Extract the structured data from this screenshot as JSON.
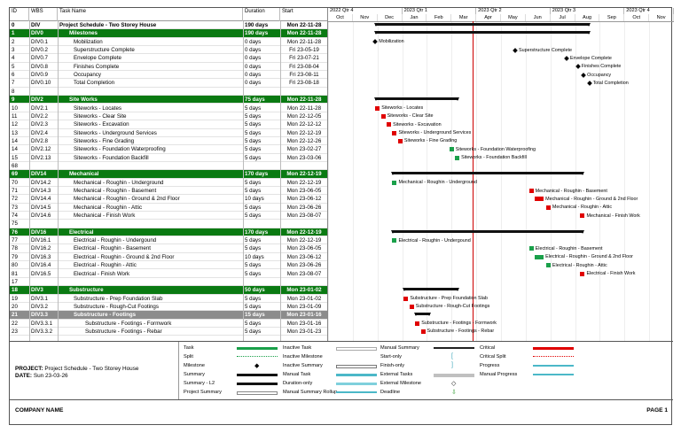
{
  "columns": {
    "id": "ID",
    "wbs": "WBS",
    "name": "Task Name",
    "duration": "Duration",
    "start": "Start"
  },
  "quarters": [
    "2022 Qtr 4",
    "2023 Qtr 1",
    "2023 Qtr 2",
    "2023 Qtr 3",
    "2023 Qtr 4"
  ],
  "months": [
    "Oct",
    "Nov",
    "Dec",
    "Jan",
    "Feb",
    "Mar",
    "Apr",
    "May",
    "Jun",
    "Jul",
    "Aug",
    "Sep",
    "Oct",
    "Nov"
  ],
  "rows": [
    {
      "id": "0",
      "wbs": "DIV",
      "name": "Project Schedule - Two Storey House",
      "duration": "190 days",
      "start": "Mon 22-11-28",
      "style": "div0",
      "indent": 0
    },
    {
      "id": "1",
      "wbs": "DIV0",
      "name": "Milestones",
      "duration": "190 days",
      "start": "Mon 22-11-28",
      "style": "div-green",
      "indent": 1
    },
    {
      "id": "2",
      "wbs": "DIV0.1",
      "name": "Mobilization",
      "duration": "0 days",
      "start": "Mon 22-11-28",
      "style": "",
      "indent": 2
    },
    {
      "id": "3",
      "wbs": "DIV0.2",
      "name": "Superstructure Complete",
      "duration": "0 days",
      "start": "Fri 23-05-19",
      "style": "",
      "indent": 2
    },
    {
      "id": "4",
      "wbs": "DIV0.7",
      "name": "Envelope Complete",
      "duration": "0 days",
      "start": "Fri 23-07-21",
      "style": "",
      "indent": 2
    },
    {
      "id": "5",
      "wbs": "DIV0.8",
      "name": "Finishes Complete",
      "duration": "0 days",
      "start": "Fri 23-08-04",
      "style": "",
      "indent": 2
    },
    {
      "id": "6",
      "wbs": "DIV0.9",
      "name": "Occupancy",
      "duration": "0 days",
      "start": "Fri 23-08-11",
      "style": "",
      "indent": 2
    },
    {
      "id": "7",
      "wbs": "DIV0.10",
      "name": "Total Completion",
      "duration": "0 days",
      "start": "Fri 23-08-18",
      "style": "",
      "indent": 2
    },
    {
      "id": "8",
      "wbs": "",
      "name": "",
      "duration": "",
      "start": "",
      "style": "",
      "indent": 0
    },
    {
      "id": "9",
      "wbs": "DIV2",
      "name": "Site Works",
      "duration": "75 days",
      "start": "Mon 22-11-28",
      "style": "div-green",
      "indent": 1
    },
    {
      "id": "10",
      "wbs": "DIV2.1",
      "name": "Siteworks - Locates",
      "duration": "5 days",
      "start": "Mon 22-11-28",
      "style": "",
      "indent": 2
    },
    {
      "id": "11",
      "wbs": "DIV2.2",
      "name": "Siteworks - Clear Site",
      "duration": "5 days",
      "start": "Mon 22-12-05",
      "style": "",
      "indent": 2
    },
    {
      "id": "12",
      "wbs": "DIV2.3",
      "name": "Siteworks - Excavation",
      "duration": "5 days",
      "start": "Mon 22-12-12",
      "style": "",
      "indent": 2
    },
    {
      "id": "13",
      "wbs": "DIV2.4",
      "name": "Siteworks - Underground Services",
      "duration": "5 days",
      "start": "Mon 22-12-19",
      "style": "",
      "indent": 2
    },
    {
      "id": "14",
      "wbs": "DIV2.8",
      "name": "Siteworks - Fine Grading",
      "duration": "5 days",
      "start": "Mon 22-12-26",
      "style": "",
      "indent": 2
    },
    {
      "id": "14b",
      "wbs": "DIV2.12",
      "name": "Siteworks - Foundation Waterproofing",
      "duration": "5 days",
      "start": "Mon 23-02-27",
      "style": "",
      "indent": 2,
      "id_label": "14"
    },
    {
      "id": "15",
      "wbs": "DIV2.13",
      "name": "Siteworks - Foundation Backfill",
      "duration": "5 days",
      "start": "Mon 23-03-06",
      "style": "",
      "indent": 2
    },
    {
      "id": "68",
      "wbs": "",
      "name": "",
      "duration": "",
      "start": "",
      "style": "",
      "indent": 0
    },
    {
      "id": "69",
      "wbs": "DIV14",
      "name": "Mechanical",
      "duration": "170 days",
      "start": "Mon 22-12-19",
      "style": "div-green",
      "indent": 1
    },
    {
      "id": "70",
      "wbs": "DIV14.2",
      "name": "Mechanical - Roughin - Underground",
      "duration": "5 days",
      "start": "Mon 22-12-19",
      "style": "",
      "indent": 2
    },
    {
      "id": "71",
      "wbs": "DIV14.3",
      "name": "Mechanical - Roughin - Basement",
      "duration": "5 days",
      "start": "Mon 23-06-05",
      "style": "",
      "indent": 2
    },
    {
      "id": "72",
      "wbs": "DIV14.4",
      "name": "Mechanical - Roughin - Ground & 2nd Floor",
      "duration": "10 days",
      "start": "Mon 23-06-12",
      "style": "",
      "indent": 2
    },
    {
      "id": "73",
      "wbs": "DIV14.5",
      "name": "Mechanical - Roughin - Attic",
      "duration": "5 days",
      "start": "Mon 23-06-26",
      "style": "",
      "indent": 2
    },
    {
      "id": "74",
      "wbs": "DIV14.6",
      "name": "Mechanical - Finish Work",
      "duration": "5 days",
      "start": "Mon 23-08-07",
      "style": "",
      "indent": 2
    },
    {
      "id": "75",
      "wbs": "",
      "name": "",
      "duration": "",
      "start": "",
      "style": "",
      "indent": 0
    },
    {
      "id": "76",
      "wbs": "DIV16",
      "name": "Electrical",
      "duration": "170 days",
      "start": "Mon 22-12-19",
      "style": "div-green",
      "indent": 1
    },
    {
      "id": "77",
      "wbs": "DIV16.1",
      "name": "Electrical - Roughin - Undergound",
      "duration": "5 days",
      "start": "Mon 22-12-19",
      "style": "",
      "indent": 2
    },
    {
      "id": "78",
      "wbs": "DIV16.2",
      "name": "Electrical - Roughin - Basement",
      "duration": "5 days",
      "start": "Mon 23-06-05",
      "style": "",
      "indent": 2
    },
    {
      "id": "79",
      "wbs": "DIV16.3",
      "name": "Electrical - Roughin - Ground & 2nd Floor",
      "duration": "10 days",
      "start": "Mon 23-06-12",
      "style": "",
      "indent": 2
    },
    {
      "id": "80",
      "wbs": "DIV16.4",
      "name": "Electrical - Roughin - Attic",
      "duration": "5 days",
      "start": "Mon 23-06-26",
      "style": "",
      "indent": 2
    },
    {
      "id": "81",
      "wbs": "DIV16.5",
      "name": "Electrical - Finish Work",
      "duration": "5 days",
      "start": "Mon 23-08-07",
      "style": "",
      "indent": 2
    },
    {
      "id": "17",
      "wbs": "",
      "name": "",
      "duration": "",
      "start": "",
      "style": "",
      "indent": 0
    },
    {
      "id": "18",
      "wbs": "DIV3",
      "name": "Substructure",
      "duration": "50 days",
      "start": "Mon 23-01-02",
      "style": "div-green",
      "indent": 1
    },
    {
      "id": "19",
      "wbs": "DIV3.1",
      "name": "Substructure - Prep Foundation Slab",
      "duration": "5 days",
      "start": "Mon 23-01-02",
      "style": "",
      "indent": 2
    },
    {
      "id": "20",
      "wbs": "DIV3.2",
      "name": "Substructure - Rough-Cut Footings",
      "duration": "5 days",
      "start": "Mon 23-01-09",
      "style": "",
      "indent": 2
    },
    {
      "id": "21",
      "wbs": "DIV3.3",
      "name": "Substructure - Footings",
      "duration": "15 days",
      "start": "Mon 23-01-16",
      "style": "div-gray",
      "indent": 2
    },
    {
      "id": "22",
      "wbs": "DIV3.3.1",
      "name": "Substructure - Footings - Formwork",
      "duration": "5 days",
      "start": "Mon 23-01-16",
      "style": "",
      "indent": 3
    },
    {
      "id": "23",
      "wbs": "DIV3.3.2",
      "name": "Substructure - Footings - Rebar",
      "duration": "5 days",
      "start": "Mon 23-01-23",
      "style": "",
      "indent": 3
    }
  ],
  "gantt": {
    "timeline_start": "2022-10-01",
    "deadline": "2023-03-28",
    "items": [
      {
        "row": 0,
        "kind": "summary",
        "start": "2022-11-28",
        "end": "2023-08-18"
      },
      {
        "row": 1,
        "kind": "summary",
        "start": "2022-11-28",
        "end": "2023-08-18"
      },
      {
        "row": 2,
        "kind": "milestone",
        "start": "2022-11-28",
        "label": "Mobilization"
      },
      {
        "row": 3,
        "kind": "milestone",
        "start": "2023-05-19",
        "label": "Superstructure Complete"
      },
      {
        "row": 4,
        "kind": "milestone",
        "start": "2023-07-21",
        "label": "Envelope Complete"
      },
      {
        "row": 5,
        "kind": "milestone",
        "start": "2023-08-04",
        "label": "Finishes Complete"
      },
      {
        "row": 6,
        "kind": "milestone",
        "start": "2023-08-11",
        "label": "Occupancy"
      },
      {
        "row": 7,
        "kind": "milestone",
        "start": "2023-08-18",
        "label": "Total Completion"
      },
      {
        "row": 9,
        "kind": "summary",
        "start": "2022-11-28",
        "end": "2023-03-10"
      },
      {
        "row": 10,
        "kind": "task",
        "color": "red",
        "start": "2022-11-28",
        "label": "Siteworks - Locates"
      },
      {
        "row": 11,
        "kind": "task",
        "color": "red",
        "start": "2022-12-05",
        "label": "Siteworks - Clear Site"
      },
      {
        "row": 12,
        "kind": "task",
        "color": "red",
        "start": "2022-12-12",
        "label": "Siteworks - Excavation"
      },
      {
        "row": 13,
        "kind": "task",
        "color": "red",
        "start": "2022-12-19",
        "label": "Siteworks - Underground Services"
      },
      {
        "row": 14,
        "kind": "task",
        "color": "red",
        "start": "2022-12-26",
        "label": "Siteworks - Fine Grading"
      },
      {
        "row": 15,
        "kind": "task",
        "color": "green",
        "start": "2023-02-27",
        "label": "Siteworks - Foundation Waterproofing"
      },
      {
        "row": 16,
        "kind": "task",
        "color": "green",
        "start": "2023-03-06",
        "label": "Siteworks - Foundation Backfill"
      },
      {
        "row": 18,
        "kind": "summary",
        "start": "2022-12-19",
        "end": "2023-08-11"
      },
      {
        "row": 19,
        "kind": "task",
        "color": "green",
        "start": "2022-12-19",
        "label": "Mechanical - Roughin - Underground"
      },
      {
        "row": 20,
        "kind": "task",
        "color": "red",
        "start": "2023-06-05",
        "label": "Mechanical - Roughin - Basement"
      },
      {
        "row": 21,
        "kind": "task",
        "color": "red",
        "start": "2023-06-12",
        "label": "Mechanical - Roughin - Ground & 2nd Floor",
        "wide": true
      },
      {
        "row": 22,
        "kind": "task",
        "color": "red",
        "start": "2023-06-26",
        "label": "Mechanical - Roughin - Attic"
      },
      {
        "row": 23,
        "kind": "task",
        "color": "red",
        "start": "2023-08-07",
        "label": "Mechanical - Finish Work"
      },
      {
        "row": 25,
        "kind": "summary",
        "start": "2022-12-19",
        "end": "2023-08-11"
      },
      {
        "row": 26,
        "kind": "task",
        "color": "green",
        "start": "2022-12-19",
        "label": "Electrical - Roughin - Undergound"
      },
      {
        "row": 27,
        "kind": "task",
        "color": "green",
        "start": "2023-06-05",
        "label": "Electrical - Roughin - Basement"
      },
      {
        "row": 28,
        "kind": "task",
        "color": "green",
        "start": "2023-06-12",
        "label": "Electrical - Roughin - Ground & 2nd Floor",
        "wide": true
      },
      {
        "row": 29,
        "kind": "task",
        "color": "green",
        "start": "2023-06-26",
        "label": "Electrical - Roughin - Attic"
      },
      {
        "row": 30,
        "kind": "task",
        "color": "red",
        "start": "2023-08-07",
        "label": "Electrical - Finish Work"
      },
      {
        "row": 32,
        "kind": "summary",
        "start": "2023-01-02",
        "end": "2023-03-10"
      },
      {
        "row": 33,
        "kind": "task",
        "color": "red",
        "start": "2023-01-02",
        "label": "Substructure - Prep Foundation Slab"
      },
      {
        "row": 34,
        "kind": "task",
        "color": "red",
        "start": "2023-01-09",
        "label": "Substructure - Rough-Cut Footings"
      },
      {
        "row": 35,
        "kind": "summary",
        "start": "2023-01-16",
        "end": "2023-02-03"
      },
      {
        "row": 36,
        "kind": "task",
        "color": "red",
        "start": "2023-01-16",
        "label": "Substructure - Footings - Formwork"
      },
      {
        "row": 37,
        "kind": "task",
        "color": "red",
        "start": "2023-01-23",
        "label": "Substructure - Footings - Rebar"
      }
    ]
  },
  "project": {
    "label": "PROJECT:",
    "name": "Project Schedule - Two Storey House",
    "date_label": "DATE:",
    "date": "Sun 23-03-26"
  },
  "legend": [
    {
      "label": "Task",
      "sym": "task"
    },
    {
      "label": "Split",
      "sym": "split"
    },
    {
      "label": "Milestone",
      "sym": "milestone"
    },
    {
      "label": "Summary",
      "sym": "summary"
    },
    {
      "label": "Summary - L2",
      "sym": "summary"
    },
    {
      "label": "Project Summary",
      "sym": "projsum"
    },
    {
      "label": "Inactive Task",
      "sym": "inactive"
    },
    {
      "label": "Inactive Milestone",
      "sym": "inmile"
    },
    {
      "label": "Inactive Summary",
      "sym": "insum"
    },
    {
      "label": "Manual Task",
      "sym": "manual"
    },
    {
      "label": "Duration-only",
      "sym": "duration"
    },
    {
      "label": "Manual Summary Rollup",
      "sym": "rollup"
    },
    {
      "label": "Manual Summary",
      "sym": "msum"
    },
    {
      "label": "Start-only",
      "sym": "startonly"
    },
    {
      "label": "Finish-only",
      "sym": "finishonly"
    },
    {
      "label": "External Tasks",
      "sym": "ext"
    },
    {
      "label": "External Milestone",
      "sym": "extmile"
    },
    {
      "label": "Deadline",
      "sym": "deadline"
    },
    {
      "label": "Critical",
      "sym": "critical"
    },
    {
      "label": "Critical Split",
      "sym": "critsplit"
    },
    {
      "label": "Progress",
      "sym": "progress"
    },
    {
      "label": "Manual Progress",
      "sym": "manprog"
    }
  ],
  "legend_glyphs": {
    "milestone": "◆",
    "startonly": "[",
    "finishonly": "]",
    "extmile": "◇",
    "deadline": "⇩"
  },
  "footer": {
    "company": "COMPANY NAME",
    "page": "PAGE 1"
  },
  "colors": {
    "div_green": "#0a7a12",
    "critical": "#e00000",
    "task_green": "#1aa04a",
    "deadline": "#c00000",
    "manual": "#4bb8c8"
  }
}
